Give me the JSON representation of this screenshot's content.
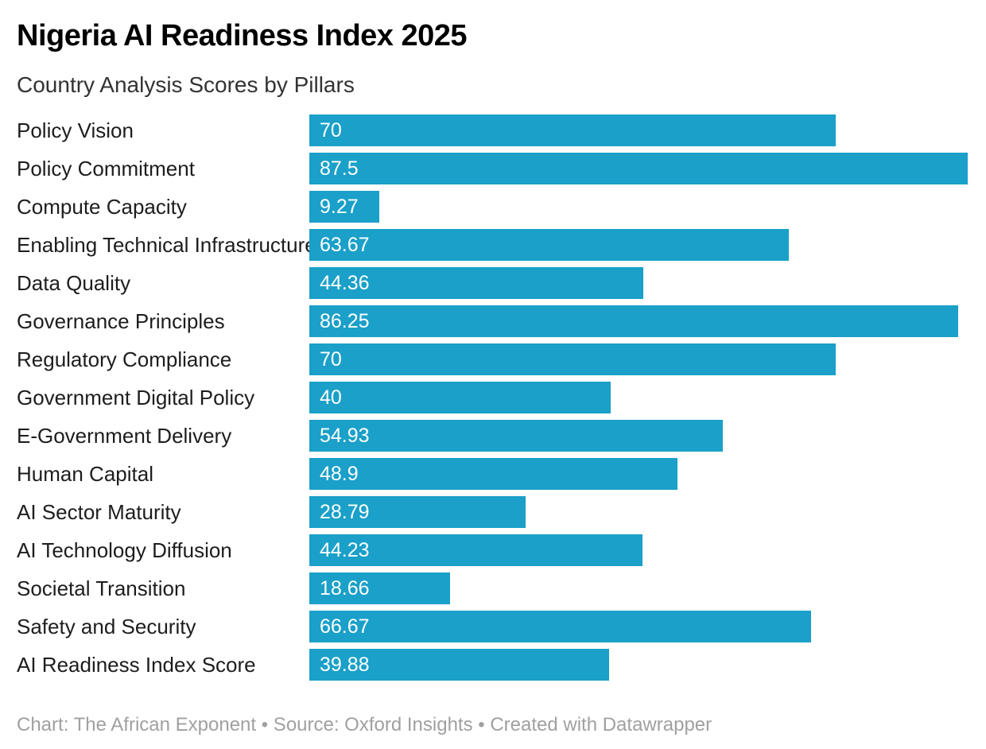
{
  "page": {
    "title": "Nigeria AI Readiness Index 2025",
    "subtitle": "Country Analysis Scores by Pillars",
    "footer": "Chart: The African Exponent • Source: Oxford Insights • Created with Datawrapper"
  },
  "colors": {
    "bar": "#1aa0c9",
    "value_label": "#ffffff",
    "category_label": "#1d1d1d",
    "title": "#000000",
    "subtitle": "#333333",
    "footer": "#a0a0a0",
    "background": "#ffffff"
  },
  "chart_data": {
    "type": "bar",
    "orientation": "horizontal",
    "title": "Nigeria AI Readiness Index 2025",
    "subtitle": "Country Analysis Scores by Pillars",
    "xlabel": "",
    "ylabel": "",
    "xlim": [
      0,
      87.5
    ],
    "grid": false,
    "legend": false,
    "value_labels_position": "inside-start",
    "categories": [
      "Policy Vision",
      "Policy Commitment",
      "Compute Capacity",
      "Enabling Technical Infrastructure",
      "Data Quality",
      "Governance Principles",
      "Regulatory Compliance",
      "Government Digital Policy",
      "E-Government Delivery",
      "Human Capital",
      "AI Sector Maturity",
      "AI Technology Diffusion",
      "Societal Transition",
      "Safety and Security",
      "AI Readiness Index Score"
    ],
    "values": [
      70,
      87.5,
      9.27,
      63.67,
      44.36,
      86.25,
      70,
      40,
      54.93,
      48.9,
      28.79,
      44.23,
      18.66,
      66.67,
      39.88
    ],
    "value_labels": [
      "70",
      "87.5",
      "9.27",
      "63.67",
      "44.36",
      "86.25",
      "70",
      "40",
      "54.93",
      "48.9",
      "28.79",
      "44.23",
      "18.66",
      "66.67",
      "39.88"
    ]
  }
}
